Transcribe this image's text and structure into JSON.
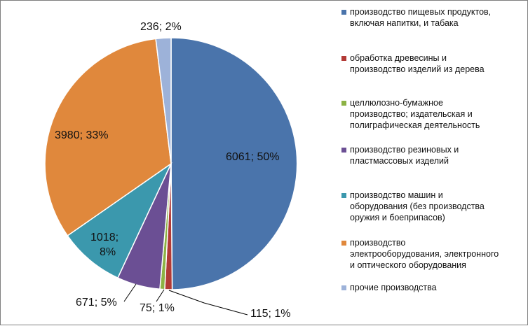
{
  "chart_data": {
    "type": "pie",
    "legend_position": "right",
    "slices": [
      {
        "category": "производство пищевых продуктов, включая напитки, и табака",
        "value": 6061,
        "percent": 50,
        "label": "6061; 50%",
        "color": "#4a74ab"
      },
      {
        "category": "обработка древесины и производство изделий из дерева",
        "value": 115,
        "percent": 1,
        "label": "115; 1%",
        "color": "#b23a36"
      },
      {
        "category": "целлюлозно-бумажное производство; издательская и полиграфическая деятельность",
        "value": 75,
        "percent": 1,
        "label": "75; 1%",
        "color": "#8cb244"
      },
      {
        "category": "производство резиновых и пластмассовых изделий",
        "value": 671,
        "percent": 5,
        "label": "671; 5%",
        "color": "#6b4f94"
      },
      {
        "category": "производство машин и оборудования (без производства оружия и боеприпасов)",
        "value": 1018,
        "percent": 8,
        "label": "1018; 8%",
        "color": "#3b98ad"
      },
      {
        "category": "производство электрооборудования, электронного и оптического оборудования",
        "value": 3980,
        "percent": 33,
        "label": "3980; 33%",
        "color": "#e0883c"
      },
      {
        "category": "прочие производства",
        "value": 236,
        "percent": 2,
        "label": "236; 2%",
        "color": "#9db2d9"
      }
    ]
  },
  "legend": {
    "items": [
      {
        "lines": [
          "производство пищевых продуктов,",
          "включая напитки, и табака"
        ]
      },
      {
        "lines": [
          "обработка древесины и",
          "производство изделий из дерева"
        ]
      },
      {
        "lines": [
          "целлюлозно-бумажное",
          "производство; издательская и",
          "полиграфическая деятельность"
        ]
      },
      {
        "lines": [
          "производство резиновых и",
          "пластмассовых изделий"
        ]
      },
      {
        "lines": [
          "производство машин и",
          "оборудования (без производства",
          "оружия и боеприпасов)"
        ]
      },
      {
        "lines": [
          "производство",
          "электрооборудования, электронного",
          "и оптического оборудования"
        ]
      },
      {
        "lines": [
          "прочие производства"
        ]
      }
    ]
  },
  "labels": {
    "l0": "6061; 50%",
    "l1": "115; 1%",
    "l2": "75; 1%",
    "l3": "671; 5%",
    "l4a": "1018;",
    "l4b": "8%",
    "l5": "3980; 33%",
    "l6": "236; 2%"
  }
}
